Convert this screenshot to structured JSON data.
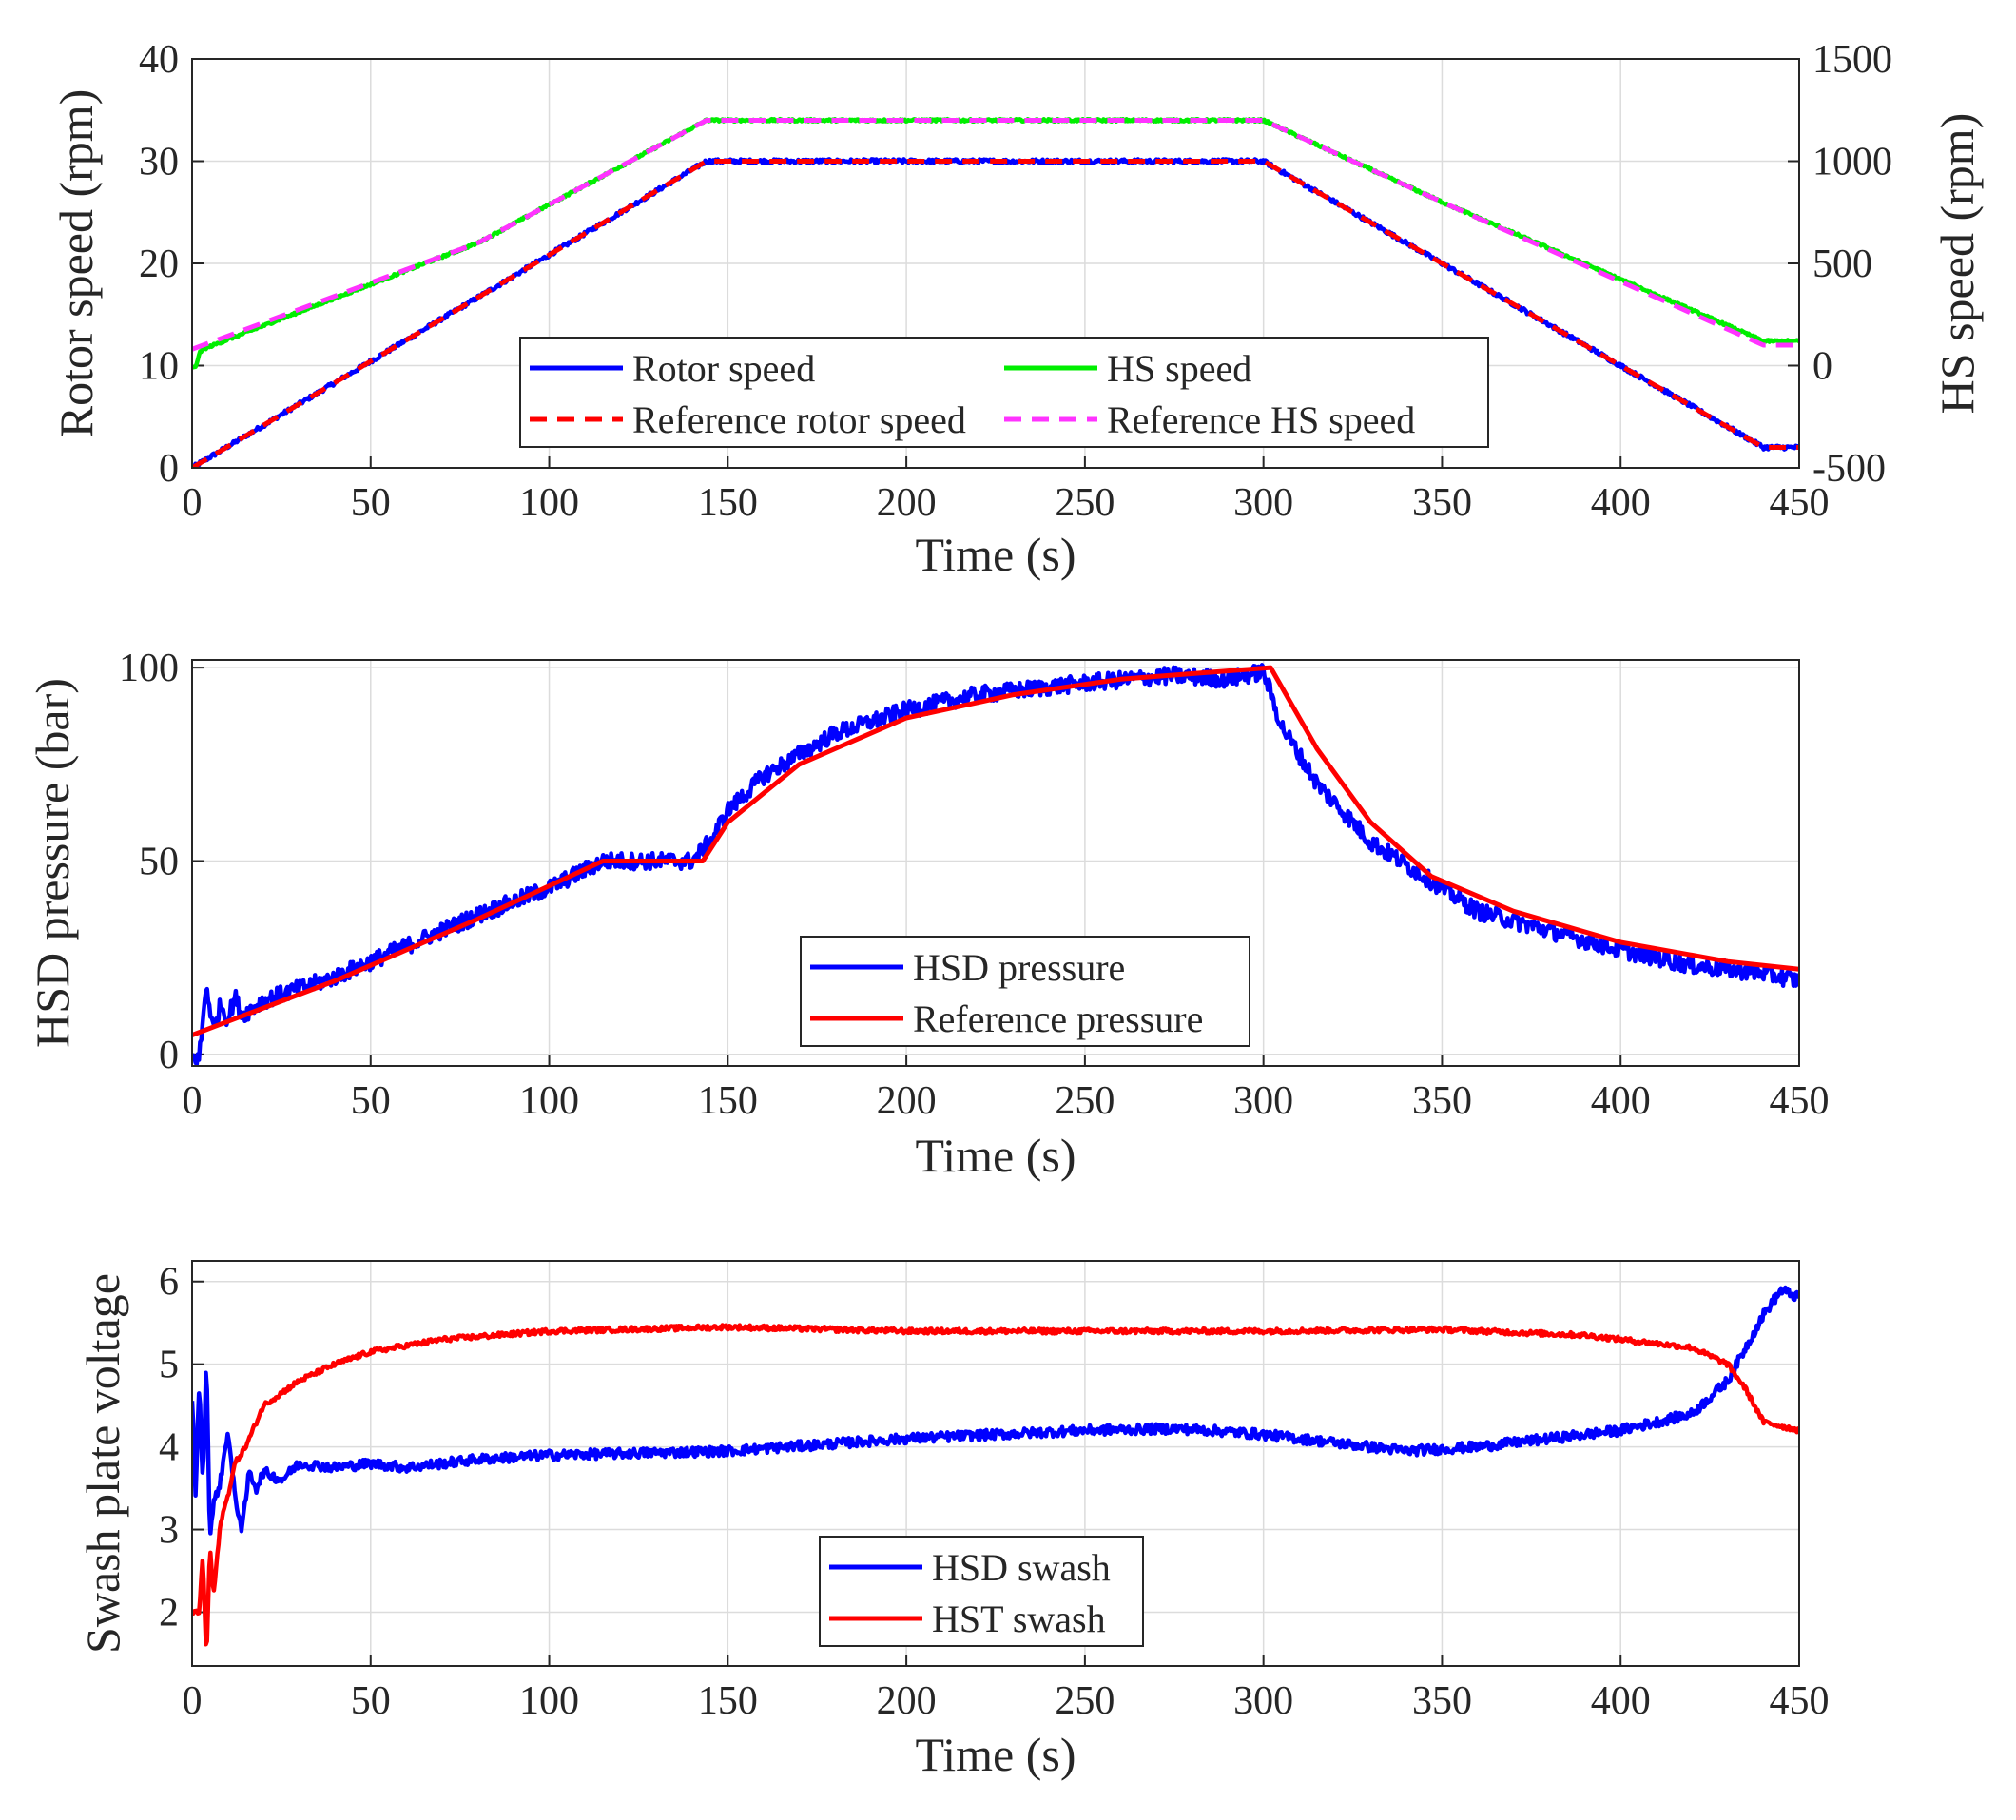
{
  "chart_data": [
    {
      "type": "line",
      "id": "speed",
      "xlabel": "Time (s)",
      "ylabel": "Rotor speed (rpm)",
      "y2label": "HS speed (rpm)",
      "xlim": [
        0,
        450
      ],
      "ylim": [
        0,
        40
      ],
      "y2lim": [
        -500,
        1500
      ],
      "xticks": [
        0,
        50,
        100,
        150,
        200,
        250,
        300,
        350,
        400,
        450
      ],
      "yticks": [
        0,
        10,
        20,
        30,
        40
      ],
      "y2ticks": [
        -500,
        0,
        500,
        1000,
        1500
      ],
      "legend_location": "bottom-center",
      "legend_columns": 2,
      "series": [
        {
          "name": "Rotor speed",
          "axis": "left",
          "style": "solid",
          "color": "#0000ff",
          "noise": 0.2,
          "x": [
            0,
            144,
            300,
            440,
            450
          ],
          "y": [
            0,
            30,
            30,
            2,
            2
          ]
        },
        {
          "name": "Reference rotor speed",
          "axis": "left",
          "style": "dashed",
          "color": "#ff0000",
          "noise": 0,
          "x": [
            0,
            144,
            300,
            440,
            450
          ],
          "y": [
            0,
            30,
            30,
            2,
            2
          ]
        },
        {
          "name": "HS speed",
          "axis": "right",
          "style": "solid",
          "color": "#00ee00",
          "noise": 6,
          "x": [
            0,
            1,
            2,
            3,
            80,
            144,
            300,
            350,
            440,
            450
          ],
          "y": [
            -10,
            -10,
            60,
            80,
            600,
            1200,
            1200,
            800,
            120,
            120
          ]
        },
        {
          "name": "Reference HS speed",
          "axis": "right",
          "style": "dashed",
          "color": "#ff33ff",
          "noise": 0,
          "x": [
            0,
            80,
            144,
            300,
            350,
            440,
            450
          ],
          "y": [
            80,
            600,
            1200,
            1200,
            800,
            100,
            100
          ]
        }
      ]
    },
    {
      "type": "line",
      "id": "pressure",
      "xlabel": "Time (s)",
      "ylabel": "HSD pressure (bar)",
      "xlim": [
        0,
        450
      ],
      "ylim": [
        -3,
        102
      ],
      "xticks": [
        0,
        50,
        100,
        150,
        200,
        250,
        300,
        350,
        400,
        450
      ],
      "yticks": [
        0,
        50,
        100
      ],
      "legend_location": "bottom-center",
      "legend_columns": 1,
      "series": [
        {
          "name": "HSD pressure",
          "axis": "left",
          "style": "solid",
          "color": "#0000ff",
          "noise": 2.2,
          "x": [
            0,
            2,
            4,
            6,
            8,
            10,
            12,
            14,
            20,
            40,
            60,
            80,
            100,
            115,
            140,
            145,
            150,
            160,
            180,
            200,
            220,
            250,
            275,
            290,
            300,
            305,
            315,
            330,
            345,
            360,
            380,
            400,
            420,
            440,
            450
          ],
          "y": [
            -1,
            -1,
            18,
            6,
            13,
            9,
            15,
            10,
            14,
            20,
            28,
            36,
            43,
            50,
            50,
            55,
            63,
            72,
            83,
            89,
            93,
            96,
            98,
            97,
            99,
            85,
            70,
            55,
            46,
            37,
            32,
            27,
            23,
            21,
            19
          ]
        },
        {
          "name": "Reference pressure",
          "axis": "left",
          "style": "solid",
          "color": "#ff0000",
          "noise": 0,
          "x": [
            0,
            40,
            80,
            115,
            143,
            150,
            170,
            200,
            230,
            260,
            302,
            315,
            330,
            347,
            370,
            400,
            430,
            450
          ],
          "y": [
            5,
            19,
            35,
            50,
            50,
            60,
            75,
            87,
            93,
            97,
            100,
            79,
            60,
            46,
            37,
            29,
            24,
            22
          ]
        }
      ]
    },
    {
      "type": "line",
      "id": "swash",
      "xlabel": "Time (s)",
      "ylabel": "Swash plate voltage",
      "xlim": [
        0,
        450
      ],
      "ylim": [
        1.35,
        6.25
      ],
      "xticks": [
        0,
        50,
        100,
        150,
        200,
        250,
        300,
        350,
        400,
        450
      ],
      "yticks": [
        2,
        3,
        4,
        5,
        6
      ],
      "legend_location": "bottom-center",
      "legend_columns": 1,
      "series": [
        {
          "name": "HSD swash",
          "axis": "left",
          "style": "solid",
          "color": "#0000ff",
          "noise": 0.06,
          "x": [
            0,
            1,
            2,
            3,
            4,
            5,
            6,
            8,
            10,
            12,
            14,
            16,
            18,
            20,
            25,
            30,
            40,
            50,
            60,
            80,
            100,
            120,
            150,
            200,
            250,
            275,
            285,
            300,
            320,
            340,
            360,
            380,
            400,
            410,
            420,
            430,
            440,
            445,
            450
          ],
          "y": [
            4.6,
            3.4,
            4.8,
            3.5,
            5.1,
            2.9,
            3.3,
            3.6,
            4.2,
            3.4,
            3.0,
            3.7,
            3.5,
            3.7,
            3.6,
            3.8,
            3.75,
            3.8,
            3.75,
            3.85,
            3.9,
            3.92,
            3.95,
            4.1,
            4.2,
            4.22,
            4.2,
            4.15,
            4.05,
            3.95,
            4.0,
            4.1,
            4.2,
            4.3,
            4.4,
            4.8,
            5.6,
            5.9,
            5.8
          ]
        },
        {
          "name": "HST swash",
          "axis": "left",
          "style": "solid",
          "color": "#ff0000",
          "noise": 0.03,
          "x": [
            0,
            2,
            3,
            4,
            5,
            6,
            8,
            10,
            12,
            15,
            20,
            30,
            40,
            50,
            70,
            100,
            150,
            200,
            250,
            300,
            350,
            390,
            400,
            410,
            420,
            430,
            435,
            440,
            450
          ],
          "y": [
            2.0,
            2.0,
            2.7,
            1.4,
            2.8,
            2.2,
            3.1,
            3.4,
            3.8,
            4.0,
            4.5,
            4.8,
            5.0,
            5.15,
            5.3,
            5.4,
            5.45,
            5.4,
            5.4,
            5.4,
            5.42,
            5.35,
            5.3,
            5.25,
            5.2,
            5.0,
            4.7,
            4.3,
            4.2
          ]
        }
      ]
    }
  ]
}
